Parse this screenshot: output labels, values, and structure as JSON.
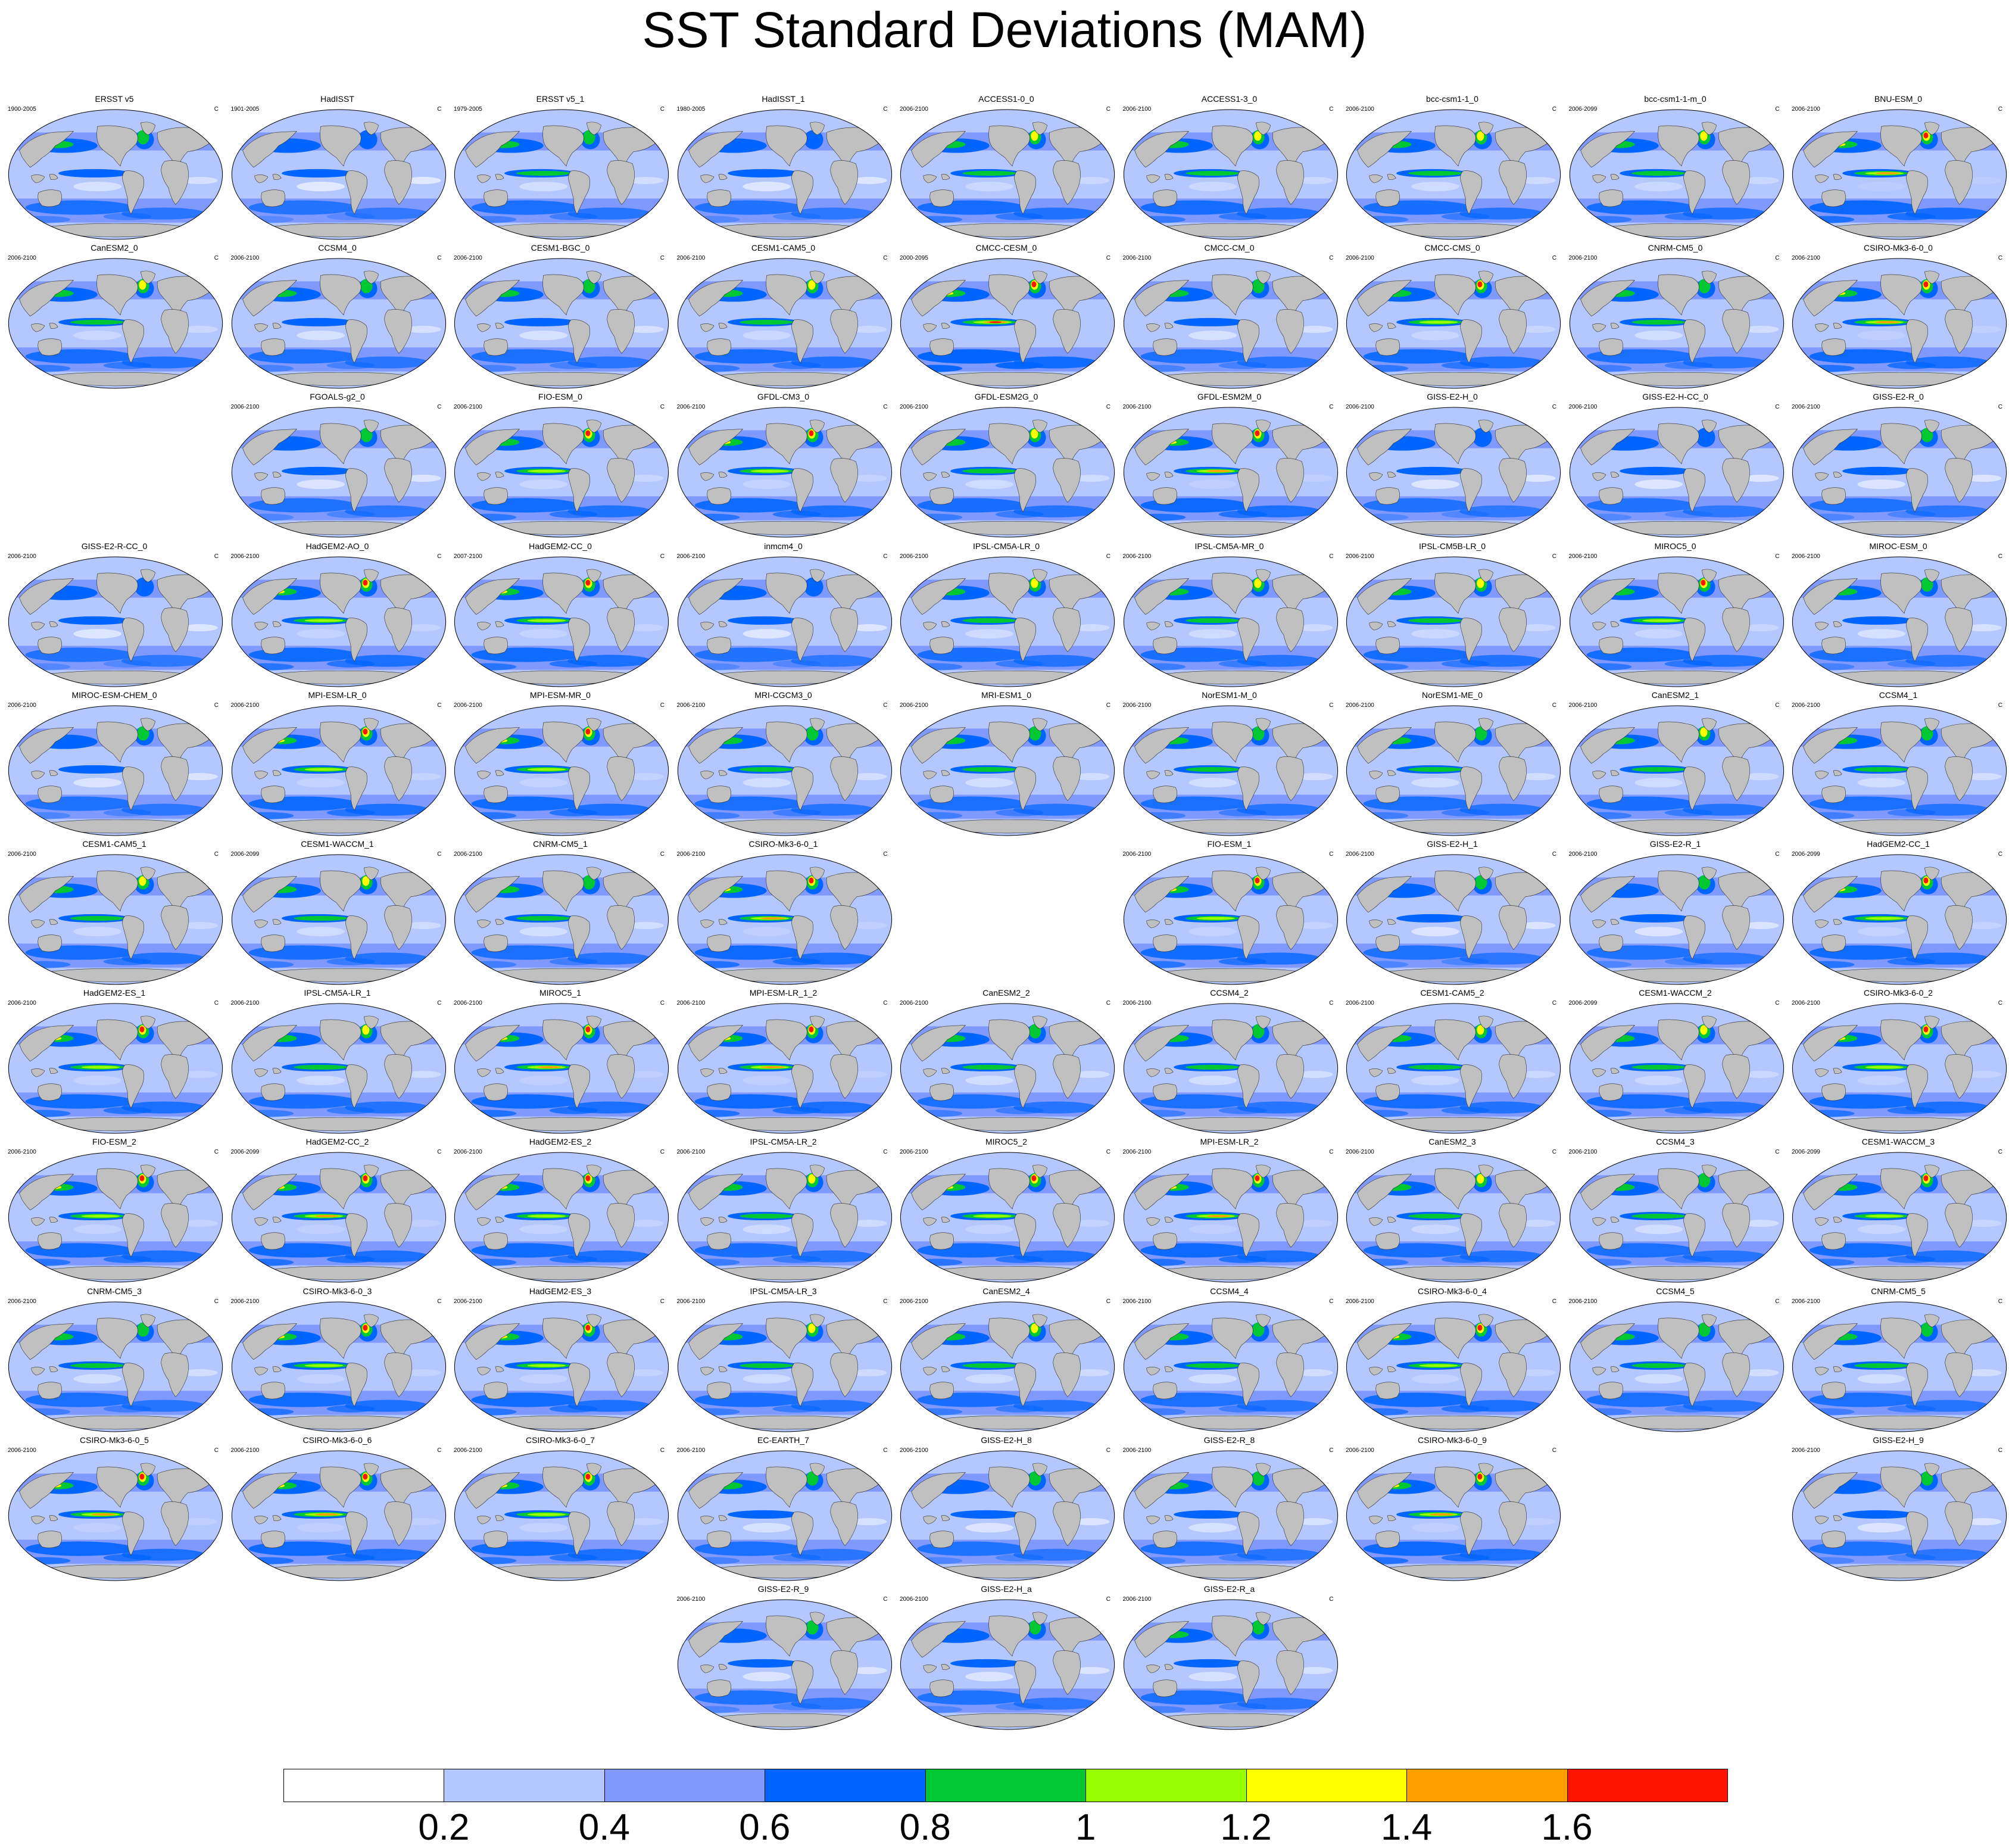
{
  "title": "SST Standard Deviations (MAM)",
  "units": "C",
  "colors": {
    "land": "#c0c0c0",
    "ocean_levels": [
      "#ffffff",
      "#b4c8ff",
      "#8099ff",
      "#0064ff",
      "#00c832",
      "#96ff00",
      "#ffff00",
      "#ffa000",
      "#ff1400"
    ]
  },
  "colorbar": {
    "levels": [
      "0.2",
      "0.4",
      "0.6",
      "0.8",
      "1",
      "1.2",
      "1.4",
      "1.6"
    ],
    "colors": [
      "#ffffff",
      "#b4c8ff",
      "#8099ff",
      "#0064ff",
      "#00c832",
      "#96ff00",
      "#ffff00",
      "#ffa000",
      "#ff1400"
    ]
  },
  "panels": [
    {
      "row": 0,
      "col": 0,
      "name": "ERSST v5",
      "years": "1900-2005",
      "intensity": 0.45
    },
    {
      "row": 0,
      "col": 1,
      "name": "HadISST",
      "years": "1901-2005",
      "intensity": 0.3
    },
    {
      "row": 0,
      "col": 2,
      "name": "ERSST v5_1",
      "years": "1979-2005",
      "intensity": 0.5
    },
    {
      "row": 0,
      "col": 3,
      "name": "HadISST_1",
      "years": "1980-2005",
      "intensity": 0.35
    },
    {
      "row": 0,
      "col": 4,
      "name": "ACCESS1-0_0",
      "years": "2006-2100",
      "intensity": 0.6
    },
    {
      "row": 0,
      "col": 5,
      "name": "ACCESS1-3_0",
      "years": "2006-2100",
      "intensity": 0.6
    },
    {
      "row": 0,
      "col": 6,
      "name": "bcc-csm1-1_0",
      "years": "2006-2100",
      "intensity": 0.55
    },
    {
      "row": 0,
      "col": 7,
      "name": "bcc-csm1-1-m_0",
      "years": "2006-2099",
      "intensity": 0.6
    },
    {
      "row": 0,
      "col": 8,
      "name": "BNU-ESM_0",
      "years": "2006-2100",
      "intensity": 0.8
    },
    {
      "row": 1,
      "col": 0,
      "name": "CanESM2_0",
      "years": "2006-2100",
      "intensity": 0.6
    },
    {
      "row": 1,
      "col": 1,
      "name": "CCSM4_0",
      "years": "2006-2100",
      "intensity": 0.45
    },
    {
      "row": 1,
      "col": 2,
      "name": "CESM1-BGC_0",
      "years": "2006-2100",
      "intensity": 0.45
    },
    {
      "row": 1,
      "col": 3,
      "name": "CESM1-CAM5_0",
      "years": "2006-2100",
      "intensity": 0.6
    },
    {
      "row": 1,
      "col": 4,
      "name": "CMCC-CESM_0",
      "years": "2000-2095",
      "intensity": 0.95
    },
    {
      "row": 1,
      "col": 5,
      "name": "CMCC-CM_0",
      "years": "2006-2100",
      "intensity": 0.45
    },
    {
      "row": 1,
      "col": 6,
      "name": "CMCC-CMS_0",
      "years": "2006-2100",
      "intensity": 0.65
    },
    {
      "row": 1,
      "col": 7,
      "name": "CNRM-CM5_0",
      "years": "2006-2100",
      "intensity": 0.5
    },
    {
      "row": 1,
      "col": 8,
      "name": "CSIRO-Mk3-6-0_0",
      "years": "2006-2100",
      "intensity": 0.75
    },
    {
      "row": 2,
      "col": 1,
      "name": "FGOALS-g2_0",
      "years": "2006-2100",
      "intensity": 0.4
    },
    {
      "row": 2,
      "col": 2,
      "name": "FIO-ESM_0",
      "years": "2006-2100",
      "intensity": 0.65
    },
    {
      "row": 2,
      "col": 3,
      "name": "GFDL-CM3_0",
      "years": "2006-2100",
      "intensity": 0.7
    },
    {
      "row": 2,
      "col": 4,
      "name": "GFDL-ESM2G_0",
      "years": "2006-2100",
      "intensity": 0.55
    },
    {
      "row": 2,
      "col": 5,
      "name": "GFDL-ESM2M_0",
      "years": "2006-2100",
      "intensity": 0.75
    },
    {
      "row": 2,
      "col": 6,
      "name": "GISS-E2-H_0",
      "years": "2006-2100",
      "intensity": 0.35
    },
    {
      "row": 2,
      "col": 7,
      "name": "GISS-E2-H-CC_0",
      "years": "2006-2100",
      "intensity": 0.35
    },
    {
      "row": 2,
      "col": 8,
      "name": "GISS-E2-R_0",
      "years": "2006-2100",
      "intensity": 0.4
    },
    {
      "row": 3,
      "col": 0,
      "name": "GISS-E2-R-CC_0",
      "years": "2006-2100",
      "intensity": 0.35
    },
    {
      "row": 3,
      "col": 1,
      "name": "HadGEM2-AO_0",
      "years": "2006-2100",
      "intensity": 0.7
    },
    {
      "row": 3,
      "col": 2,
      "name": "HadGEM2-CC_0",
      "years": "2007-2100",
      "intensity": 0.7
    },
    {
      "row": 3,
      "col": 3,
      "name": "inmcm4_0",
      "years": "2006-2100",
      "intensity": 0.35
    },
    {
      "row": 3,
      "col": 4,
      "name": "IPSL-CM5A-LR_0",
      "years": "2006-2100",
      "intensity": 0.55
    },
    {
      "row": 3,
      "col": 5,
      "name": "IPSL-CM5A-MR_0",
      "years": "2006-2100",
      "intensity": 0.55
    },
    {
      "row": 3,
      "col": 6,
      "name": "IPSL-CM5B-LR_0",
      "years": "2006-2100",
      "intensity": 0.6
    },
    {
      "row": 3,
      "col": 7,
      "name": "MIROC5_0",
      "years": "2006-2100",
      "intensity": 0.65
    },
    {
      "row": 3,
      "col": 8,
      "name": "MIROC-ESM_0",
      "years": "2006-2100",
      "intensity": 0.45
    },
    {
      "row": 4,
      "col": 0,
      "name": "MIROC-ESM-CHEM_0",
      "years": "2006-2100",
      "intensity": 0.4
    },
    {
      "row": 4,
      "col": 1,
      "name": "MPI-ESM-LR_0",
      "years": "2006-2100",
      "intensity": 0.7
    },
    {
      "row": 4,
      "col": 2,
      "name": "MPI-ESM-MR_0",
      "years": "2006-2100",
      "intensity": 0.7
    },
    {
      "row": 4,
      "col": 3,
      "name": "MRI-CGCM3_0",
      "years": "2006-2100",
      "intensity": 0.5
    },
    {
      "row": 4,
      "col": 4,
      "name": "MRI-ESM1_0",
      "years": "2006-2100",
      "intensity": 0.5
    },
    {
      "row": 4,
      "col": 5,
      "name": "NorESM1-M_0",
      "years": "2006-2100",
      "intensity": 0.5
    },
    {
      "row": 4,
      "col": 6,
      "name": "NorESM1-ME_0",
      "years": "2006-2100",
      "intensity": 0.5
    },
    {
      "row": 4,
      "col": 7,
      "name": "CanESM2_1",
      "years": "2006-2100",
      "intensity": 0.55
    },
    {
      "row": 4,
      "col": 8,
      "name": "CCSM4_1",
      "years": "2006-2100",
      "intensity": 0.5
    },
    {
      "row": 5,
      "col": 0,
      "name": "CESM1-CAM5_1",
      "years": "2006-2100",
      "intensity": 0.6
    },
    {
      "row": 5,
      "col": 1,
      "name": "CESM1-WACCM_1",
      "years": "2006-2099",
      "intensity": 0.55
    },
    {
      "row": 5,
      "col": 2,
      "name": "CNRM-CM5_1",
      "years": "2006-2100",
      "intensity": 0.5
    },
    {
      "row": 5,
      "col": 3,
      "name": "CSIRO-Mk3-6-0_1",
      "years": "2006-2100",
      "intensity": 0.75
    },
    {
      "row": 5,
      "col": 5,
      "name": "FIO-ESM_1",
      "years": "2006-2100",
      "intensity": 0.7
    },
    {
      "row": 5,
      "col": 6,
      "name": "GISS-E2-H_1",
      "years": "2006-2100",
      "intensity": 0.4
    },
    {
      "row": 5,
      "col": 7,
      "name": "GISS-E2-R_1",
      "years": "2006-2100",
      "intensity": 0.4
    },
    {
      "row": 5,
      "col": 8,
      "name": "HadGEM2-CC_1",
      "years": "2006-2099",
      "intensity": 0.7
    },
    {
      "row": 6,
      "col": 0,
      "name": "HadGEM2-ES_1",
      "years": "2006-2100",
      "intensity": 0.7
    },
    {
      "row": 6,
      "col": 1,
      "name": "IPSL-CM5A-LR_1",
      "years": "2006-2100",
      "intensity": 0.55
    },
    {
      "row": 6,
      "col": 2,
      "name": "MIROC5_1",
      "years": "2006-2100",
      "intensity": 0.75
    },
    {
      "row": 6,
      "col": 3,
      "name": "MPI-ESM-LR_1_2",
      "years": "2006-2100",
      "intensity": 0.75
    },
    {
      "row": 6,
      "col": 4,
      "name": "CanESM2_2",
      "years": "2006-2100",
      "intensity": 0.5
    },
    {
      "row": 6,
      "col": 5,
      "name": "CCSM4_2",
      "years": "2006-2100",
      "intensity": 0.5
    },
    {
      "row": 6,
      "col": 6,
      "name": "CESM1-CAM5_2",
      "years": "2006-2100",
      "intensity": 0.6
    },
    {
      "row": 6,
      "col": 7,
      "name": "CESM1-WACCM_2",
      "years": "2006-2099",
      "intensity": 0.6
    },
    {
      "row": 6,
      "col": 8,
      "name": "CSIRO-Mk3-6-0_2",
      "years": "2006-2100",
      "intensity": 0.7
    },
    {
      "row": 7,
      "col": 0,
      "name": "FIO-ESM_2",
      "years": "2006-2100",
      "intensity": 0.7
    },
    {
      "row": 7,
      "col": 1,
      "name": "HadGEM2-CC_2",
      "years": "2006-2099",
      "intensity": 0.75
    },
    {
      "row": 7,
      "col": 2,
      "name": "HadGEM2-ES_2",
      "years": "2006-2100",
      "intensity": 0.7
    },
    {
      "row": 7,
      "col": 3,
      "name": "IPSL-CM5A-LR_2",
      "years": "2006-2100",
      "intensity": 0.55
    },
    {
      "row": 7,
      "col": 4,
      "name": "MIROC5_2",
      "years": "2006-2100",
      "intensity": 0.7
    },
    {
      "row": 7,
      "col": 5,
      "name": "MPI-ESM-LR_2",
      "years": "2006-2100",
      "intensity": 0.75
    },
    {
      "row": 7,
      "col": 6,
      "name": "CanESM2_3",
      "years": "2006-2100",
      "intensity": 0.6
    },
    {
      "row": 7,
      "col": 7,
      "name": "CCSM4_3",
      "years": "2006-2100",
      "intensity": 0.5
    },
    {
      "row": 7,
      "col": 8,
      "name": "CESM1-WACCM_3",
      "years": "2006-2099",
      "intensity": 0.65
    },
    {
      "row": 8,
      "col": 0,
      "name": "CNRM-CM5_3",
      "years": "2006-2100",
      "intensity": 0.5
    },
    {
      "row": 8,
      "col": 1,
      "name": "CSIRO-Mk3-6-0_3",
      "years": "2006-2100",
      "intensity": 0.7
    },
    {
      "row": 8,
      "col": 2,
      "name": "HadGEM2-ES_3",
      "years": "2006-2100",
      "intensity": 0.7
    },
    {
      "row": 8,
      "col": 3,
      "name": "IPSL-CM5A-LR_3",
      "years": "2006-2100",
      "intensity": 0.55
    },
    {
      "row": 8,
      "col": 4,
      "name": "CanESM2_4",
      "years": "2006-2100",
      "intensity": 0.55
    },
    {
      "row": 8,
      "col": 5,
      "name": "CCSM4_4",
      "years": "2006-2100",
      "intensity": 0.5
    },
    {
      "row": 8,
      "col": 6,
      "name": "CSIRO-Mk3-6-0_4",
      "years": "2006-2100",
      "intensity": 0.7
    },
    {
      "row": 8,
      "col": 7,
      "name": "CCSM4_5",
      "years": "2006-2100",
      "intensity": 0.5
    },
    {
      "row": 8,
      "col": 8,
      "name": "CNRM-CM5_5",
      "years": "2006-2100",
      "intensity": 0.5
    },
    {
      "row": 9,
      "col": 0,
      "name": "CSIRO-Mk3-6-0_5",
      "years": "2006-2100",
      "intensity": 0.75
    },
    {
      "row": 9,
      "col": 1,
      "name": "CSIRO-Mk3-6-0_6",
      "years": "2006-2100",
      "intensity": 0.75
    },
    {
      "row": 9,
      "col": 2,
      "name": "CSIRO-Mk3-6-0_7",
      "years": "2006-2100",
      "intensity": 0.7
    },
    {
      "row": 9,
      "col": 3,
      "name": "EC-EARTH_7",
      "years": "2006-2100",
      "intensity": 0.45
    },
    {
      "row": 9,
      "col": 4,
      "name": "GISS-E2-H_8",
      "years": "2006-2100",
      "intensity": 0.4
    },
    {
      "row": 9,
      "col": 5,
      "name": "GISS-E2-R_8",
      "years": "2006-2100",
      "intensity": 0.45
    },
    {
      "row": 9,
      "col": 6,
      "name": "CSIRO-Mk3-6-0_9",
      "years": "2006-2100",
      "intensity": 0.75
    },
    {
      "row": 9,
      "col": 8,
      "name": "GISS-E2-H_9",
      "years": "2006-2100",
      "intensity": 0.4
    },
    {
      "row": 10,
      "col": 3,
      "name": "GISS-E2-R_9",
      "years": "2006-2100",
      "intensity": 0.4
    },
    {
      "row": 10,
      "col": 4,
      "name": "GISS-E2-H_a",
      "years": "2006-2100",
      "intensity": 0.4
    },
    {
      "row": 10,
      "col": 5,
      "name": "GISS-E2-R_a",
      "years": "2006-2100",
      "intensity": 0.45
    }
  ]
}
